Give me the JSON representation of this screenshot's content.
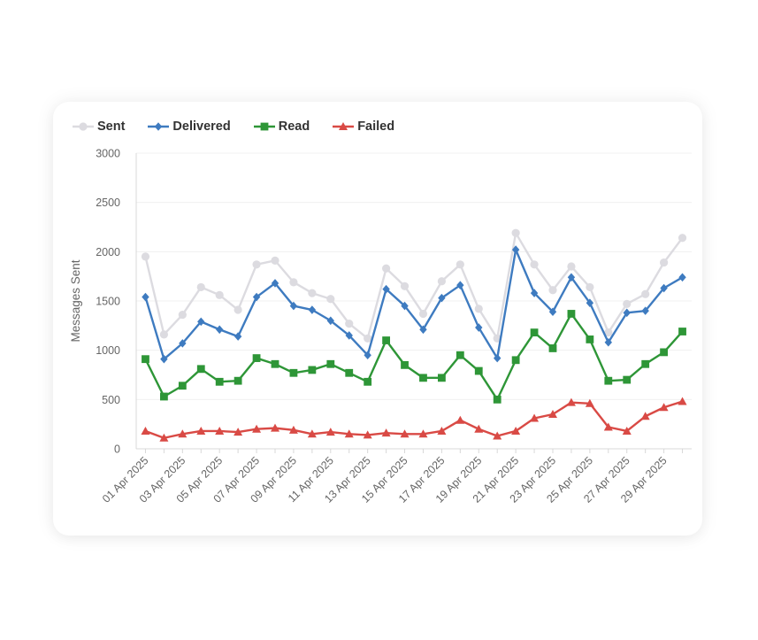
{
  "chart_data": {
    "type": "line",
    "title": "",
    "xlabel": "",
    "ylabel": "Messages Sent",
    "ylim": [
      0,
      3000
    ],
    "yticks": [
      0,
      500,
      1000,
      1500,
      2000,
      2500,
      3000
    ],
    "grid": "horizontal",
    "legend": "top-left",
    "x": [
      "01 Apr 2025",
      "02 Apr 2025",
      "03 Apr 2025",
      "04 Apr 2025",
      "05 Apr 2025",
      "06 Apr 2025",
      "07 Apr 2025",
      "08 Apr 2025",
      "09 Apr 2025",
      "10 Apr 2025",
      "11 Apr 2025",
      "12 Apr 2025",
      "13 Apr 2025",
      "14 Apr 2025",
      "15 Apr 2025",
      "16 Apr 2025",
      "17 Apr 2025",
      "18 Apr 2025",
      "19 Apr 2025",
      "20 Apr 2025",
      "21 Apr 2025",
      "22 Apr 2025",
      "23 Apr 2025",
      "24 Apr 2025",
      "25 Apr 2025",
      "26 Apr 2025",
      "27 Apr 2025",
      "28 Apr 2025",
      "29 Apr 2025",
      "30 Apr 2025"
    ],
    "xtick_labels": [
      "01 Apr 2025",
      "03 Apr 2025",
      "05 Apr 2025",
      "07 Apr 2025",
      "09 Apr 2025",
      "11 Apr 2025",
      "13 Apr 2025",
      "15 Apr 2025",
      "17 Apr 2025",
      "19 Apr 2025",
      "21 Apr 2025",
      "23 Apr 2025",
      "25 Apr 2025",
      "27 Apr 2025",
      "29 Apr 2025"
    ],
    "series": [
      {
        "name": "Sent",
        "color": "#dcdbe0",
        "marker": "circle",
        "values": [
          1950,
          1160,
          1360,
          1640,
          1560,
          1410,
          1870,
          1910,
          1690,
          1580,
          1520,
          1270,
          1120,
          1830,
          1650,
          1370,
          1700,
          1870,
          1420,
          1120,
          2190,
          1870,
          1610,
          1850,
          1640,
          1180,
          1470,
          1570,
          1890,
          2140
        ]
      },
      {
        "name": "Delivered",
        "color": "#3e7bc0",
        "marker": "diamond",
        "values": [
          1540,
          910,
          1070,
          1290,
          1210,
          1140,
          1540,
          1680,
          1450,
          1410,
          1300,
          1150,
          950,
          1620,
          1450,
          1210,
          1530,
          1660,
          1230,
          920,
          2020,
          1580,
          1390,
          1740,
          1480,
          1080,
          1380,
          1400,
          1630,
          1740
        ]
      },
      {
        "name": "Read",
        "color": "#2e9637",
        "marker": "square",
        "values": [
          910,
          530,
          640,
          810,
          680,
          690,
          920,
          860,
          770,
          800,
          860,
          770,
          680,
          1100,
          850,
          720,
          720,
          950,
          790,
          500,
          900,
          1180,
          1020,
          1370,
          1110,
          690,
          700,
          860,
          980,
          1190
        ]
      },
      {
        "name": "Failed",
        "color": "#d94a45",
        "marker": "triangle",
        "values": [
          180,
          110,
          150,
          180,
          180,
          170,
          200,
          210,
          190,
          150,
          170,
          150,
          140,
          160,
          150,
          150,
          180,
          290,
          200,
          130,
          180,
          310,
          350,
          470,
          460,
          220,
          180,
          330,
          420,
          480
        ]
      }
    ]
  }
}
